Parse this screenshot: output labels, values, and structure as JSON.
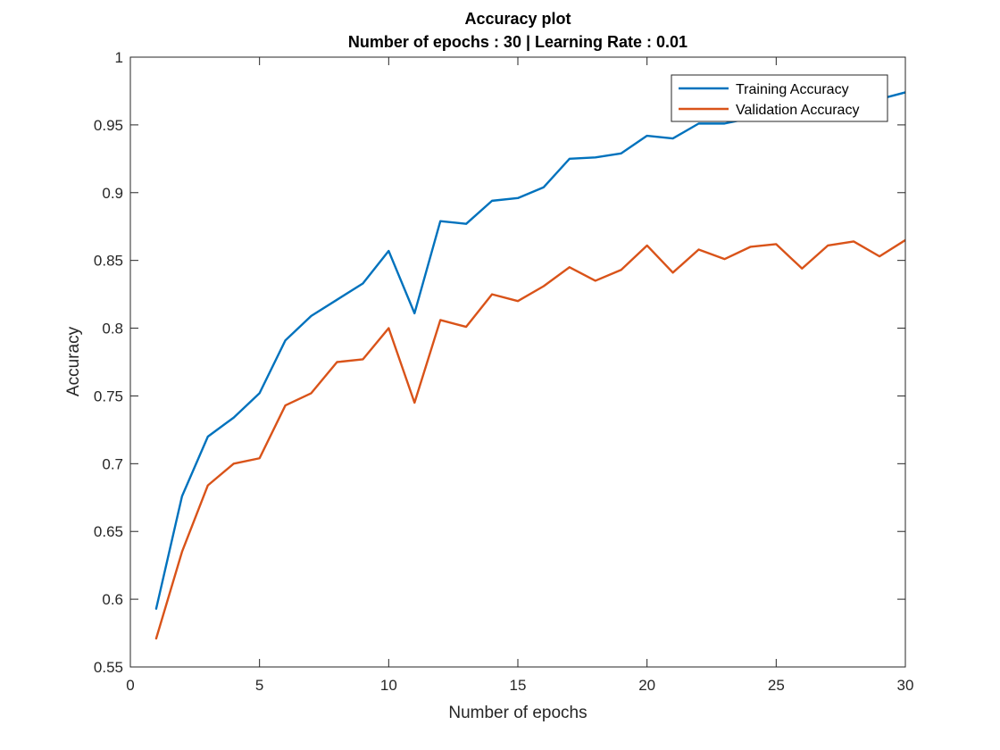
{
  "chart_data": {
    "type": "line",
    "title": "Accuracy plot",
    "subtitle": "Number of epochs : 30 | Learning Rate : 0.01",
    "xlabel": "Number of epochs",
    "ylabel": "Accuracy",
    "xlim": [
      0,
      30
    ],
    "ylim": [
      0.55,
      1
    ],
    "xticks": [
      "0",
      "5",
      "10",
      "15",
      "20",
      "25",
      "30"
    ],
    "yticks": [
      "0.55",
      "0.6",
      "0.65",
      "0.7",
      "0.75",
      "0.8",
      "0.85",
      "0.9",
      "0.95",
      "1"
    ],
    "grid": false,
    "legend_position": "top-right",
    "x": [
      1,
      2,
      3,
      4,
      5,
      6,
      7,
      8,
      9,
      10,
      11,
      12,
      13,
      14,
      15,
      16,
      17,
      18,
      19,
      20,
      21,
      22,
      23,
      24,
      25,
      26,
      27,
      28,
      29,
      30
    ],
    "series": [
      {
        "name": "Training Accuracy",
        "color": "#0072BD",
        "values": [
          0.593,
          0.676,
          0.72,
          0.734,
          0.752,
          0.791,
          0.809,
          0.821,
          0.833,
          0.857,
          0.811,
          0.879,
          0.877,
          0.894,
          0.896,
          0.904,
          0.925,
          0.926,
          0.929,
          0.942,
          0.94,
          0.951,
          0.951,
          0.955,
          0.962,
          0.96,
          0.964,
          0.966,
          0.969,
          0.974
        ]
      },
      {
        "name": "Validation Accuracy",
        "color": "#D95319",
        "values": [
          0.571,
          0.635,
          0.684,
          0.7,
          0.704,
          0.743,
          0.752,
          0.775,
          0.777,
          0.8,
          0.745,
          0.806,
          0.801,
          0.825,
          0.82,
          0.831,
          0.845,
          0.835,
          0.843,
          0.861,
          0.841,
          0.858,
          0.851,
          0.86,
          0.862,
          0.844,
          0.861,
          0.864,
          0.853,
          0.865
        ]
      }
    ]
  }
}
